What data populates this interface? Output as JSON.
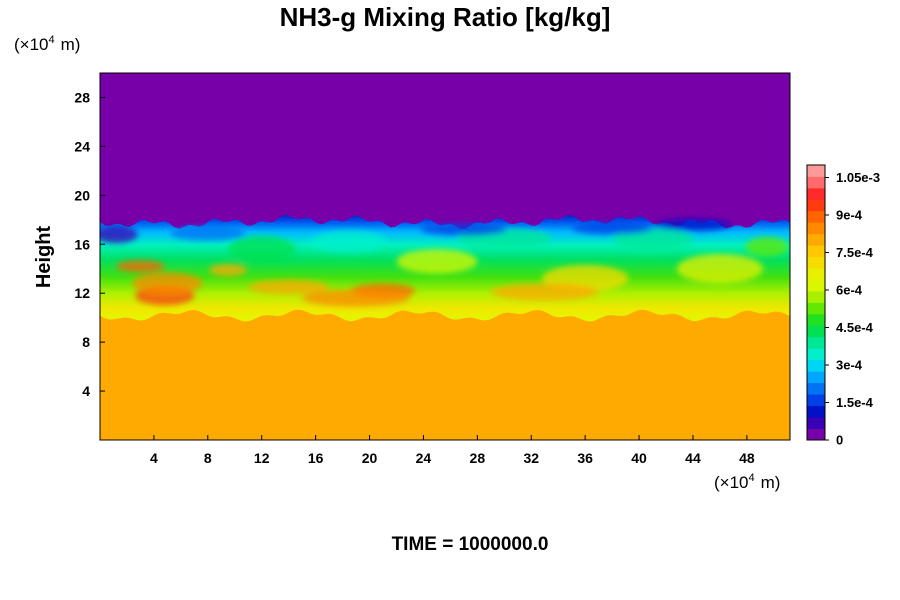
{
  "chart_data": {
    "type": "heatmap",
    "title": "NH3-g Mixing Ratio [kg/kg]",
    "ylabel": "Height",
    "y_unit": {
      "prefix": "(×10",
      "exp": "4",
      "suffix": "m)"
    },
    "x_unit": {
      "prefix": "(×10",
      "exp": "4",
      "suffix": "m)"
    },
    "xlim": [
      0,
      51.2
    ],
    "ylim": [
      0,
      30
    ],
    "xticks": [
      4,
      8,
      12,
      16,
      20,
      24,
      28,
      32,
      36,
      40,
      44,
      48
    ],
    "yticks": [
      4,
      8,
      12,
      16,
      20,
      24,
      28
    ],
    "time_label": "TIME = 1000000.0",
    "colorbar": {
      "min": 0,
      "max": 0.0011,
      "tick_values": [
        0,
        0.00015,
        0.0003,
        0.00045,
        0.0006,
        0.00075,
        0.0009,
        0.00105
      ],
      "tick_labels": [
        "0",
        "1.5e-4",
        "3e-4",
        "4.5e-4",
        "6e-4",
        "7.5e-4",
        "9e-4",
        "1.05e-3"
      ],
      "colors": [
        "#7700a8",
        "#3a00b4",
        "#0012c8",
        "#0040e6",
        "#0072f4",
        "#00a6ff",
        "#00d6f4",
        "#00f0cc",
        "#00e896",
        "#00e050",
        "#20e020",
        "#60e800",
        "#a8f000",
        "#d8f800",
        "#e6f000",
        "#f6dc00",
        "#ffc800",
        "#ffaa00",
        "#ff8a00",
        "#ff6400",
        "#ff3c10",
        "#ff2a2a",
        "#ff6a6a",
        "#ff9a9a"
      ]
    },
    "regions": {
      "lower_value": 0.00078,
      "upper_value": 0,
      "mixing_layer_top_y": 18,
      "mixing_layer_bottom_y": 10.5
    }
  }
}
